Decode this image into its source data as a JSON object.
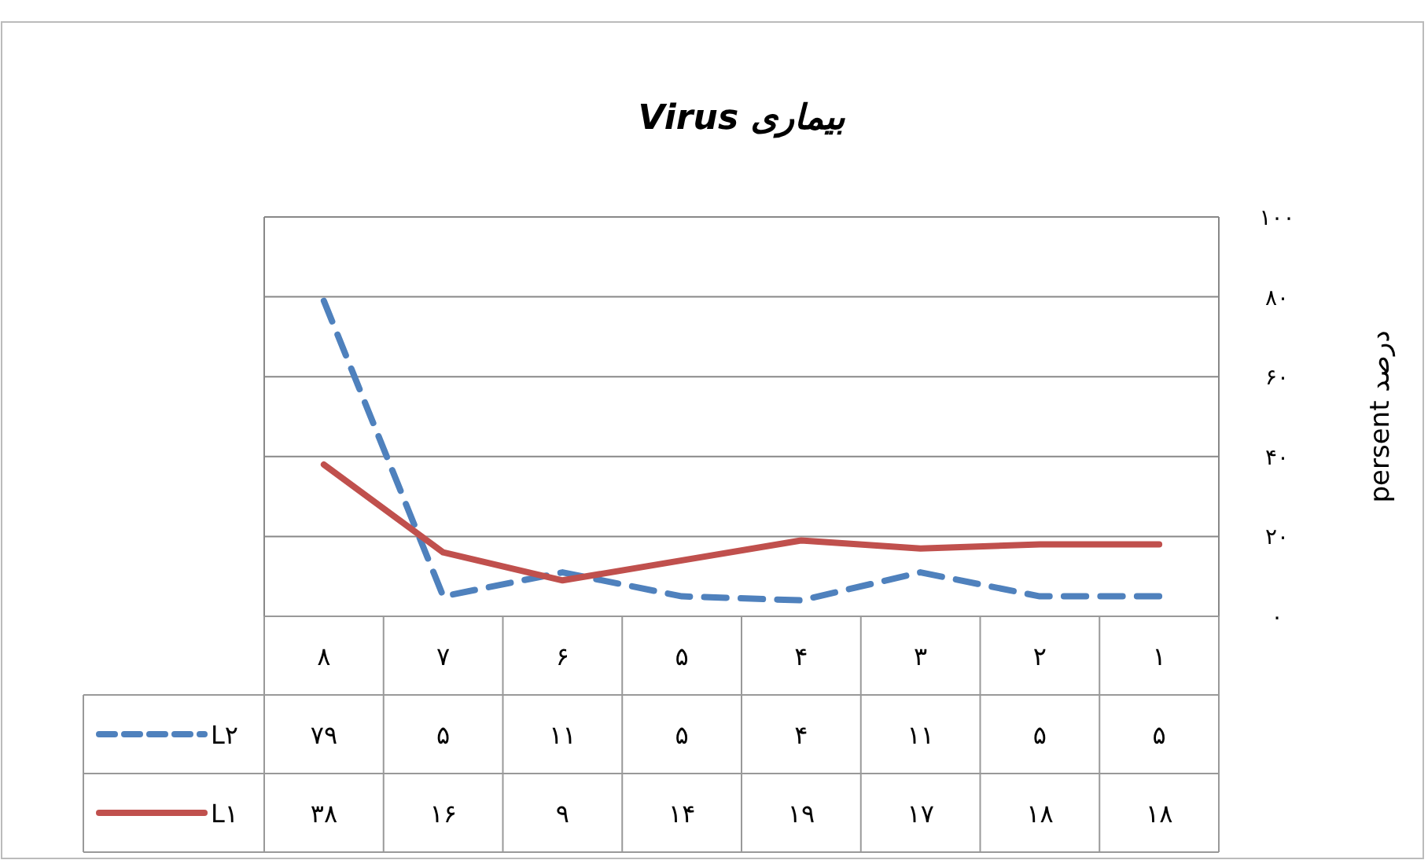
{
  "chart_data": {
    "type": "line",
    "title": "بیماری Virus",
    "ylabel": "persent درصد",
    "categories": [
      "۸",
      "۷",
      "۶",
      "۵",
      "۴",
      "۳",
      "۲",
      "۱"
    ],
    "series": [
      {
        "name": "L۲",
        "color": "#4f81bd",
        "line_style": "dashed",
        "values": [
          79,
          5,
          11,
          5,
          4,
          11,
          5,
          5
        ],
        "value_labels": [
          "۷۹",
          "۵",
          "۱۱",
          "۵",
          "۴",
          "۱۱",
          "۵",
          "۵"
        ]
      },
      {
        "name": "L۱",
        "color": "#c0504d",
        "line_style": "solid",
        "values": [
          38,
          16,
          9,
          14,
          19,
          17,
          18,
          18
        ],
        "value_labels": [
          "۳۸",
          "۱۶",
          "۹",
          "۱۴",
          "۱۹",
          "۱۷",
          "۱۸",
          "۱۸"
        ]
      }
    ],
    "ylim": [
      0,
      100
    ],
    "yticks": [
      {
        "value": 0,
        "label": "۰"
      },
      {
        "value": 20,
        "label": "۲۰"
      },
      {
        "value": 40,
        "label": "۴۰"
      },
      {
        "value": 60,
        "label": "۶۰"
      },
      {
        "value": 80,
        "label": "۸۰"
      },
      {
        "value": 100,
        "label": "۱۰۰"
      }
    ],
    "grid": "y",
    "legend": "bottom",
    "marker": "none"
  }
}
